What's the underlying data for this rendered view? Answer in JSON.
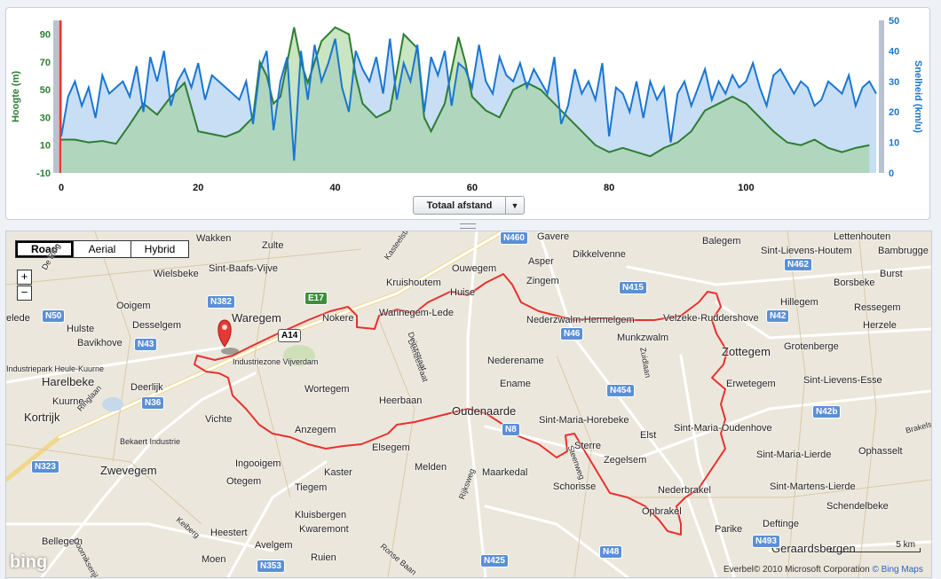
{
  "chart_data": {
    "type": "area",
    "xlabel": "",
    "x_ticks": [
      0,
      20,
      40,
      60,
      80,
      100
    ],
    "xlim": [
      0,
      119
    ],
    "y_left": {
      "label": "Hoogte (m)",
      "ticks": [
        -10,
        10,
        30,
        50,
        70,
        90
      ],
      "range": [
        -10,
        100
      ],
      "color": "#2e7d32"
    },
    "y_right": {
      "label": "Snelheid (km/u)",
      "ticks": [
        0,
        10,
        20,
        30,
        40,
        50
      ],
      "range": [
        0,
        50
      ],
      "color": "#1976d2"
    },
    "series": [
      {
        "name": "Hoogte",
        "unit": "m",
        "color": "#2e7d32",
        "x": [
          0,
          2,
          4,
          6,
          8,
          10,
          12,
          14,
          16,
          18,
          20,
          22,
          24,
          26,
          28,
          29,
          30,
          31,
          32,
          34,
          35,
          36,
          38,
          40,
          42,
          43,
          44,
          46,
          48,
          50,
          52,
          53,
          54,
          56,
          58,
          59,
          60,
          62,
          64,
          66,
          68,
          70,
          72,
          74,
          76,
          78,
          80,
          82,
          84,
          86,
          88,
          90,
          92,
          94,
          96,
          98,
          100,
          102,
          104,
          106,
          108,
          110,
          112,
          114,
          116,
          118
        ],
        "values": [
          14,
          14,
          12,
          13,
          11,
          25,
          40,
          32,
          45,
          55,
          20,
          18,
          16,
          20,
          30,
          70,
          60,
          40,
          45,
          95,
          70,
          55,
          85,
          95,
          90,
          60,
          40,
          30,
          35,
          90,
          80,
          30,
          20,
          40,
          88,
          70,
          45,
          35,
          30,
          50,
          55,
          50,
          40,
          30,
          20,
          10,
          5,
          8,
          5,
          2,
          8,
          12,
          20,
          35,
          40,
          45,
          40,
          30,
          20,
          12,
          10,
          14,
          8,
          5,
          8,
          10
        ]
      },
      {
        "name": "Snelheid",
        "unit": "km/u",
        "color": "#1976d2",
        "x": [
          0,
          1,
          2,
          3,
          4,
          5,
          6,
          7,
          8,
          9,
          10,
          11,
          12,
          13,
          14,
          15,
          16,
          17,
          18,
          19,
          20,
          21,
          22,
          23,
          24,
          25,
          26,
          27,
          28,
          29,
          30,
          31,
          32,
          33,
          34,
          35,
          36,
          37,
          38,
          39,
          40,
          41,
          42,
          43,
          44,
          45,
          46,
          47,
          48,
          49,
          50,
          51,
          52,
          53,
          54,
          55,
          56,
          57,
          58,
          59,
          60,
          61,
          62,
          63,
          64,
          65,
          66,
          67,
          68,
          69,
          70,
          71,
          72,
          73,
          74,
          75,
          76,
          77,
          78,
          79,
          80,
          81,
          82,
          83,
          84,
          85,
          86,
          87,
          88,
          89,
          90,
          91,
          92,
          93,
          94,
          95,
          96,
          97,
          98,
          99,
          100,
          101,
          102,
          103,
          104,
          105,
          106,
          107,
          108,
          109,
          110,
          111,
          112,
          113,
          114,
          115,
          116,
          117,
          118,
          119
        ],
        "values": [
          12,
          25,
          30,
          22,
          28,
          18,
          32,
          26,
          28,
          30,
          25,
          35,
          20,
          38,
          30,
          40,
          22,
          30,
          34,
          28,
          36,
          24,
          32,
          30,
          28,
          26,
          24,
          30,
          16,
          34,
          40,
          14,
          30,
          38,
          4,
          40,
          24,
          42,
          30,
          36,
          44,
          28,
          20,
          40,
          34,
          30,
          38,
          26,
          44,
          24,
          36,
          30,
          42,
          20,
          38,
          32,
          40,
          22,
          36,
          34,
          28,
          42,
          30,
          26,
          38,
          32,
          30,
          36,
          28,
          34,
          30,
          26,
          38,
          16,
          22,
          34,
          26,
          30,
          24,
          36,
          12,
          28,
          26,
          20,
          30,
          18,
          30,
          24,
          28,
          10,
          26,
          30,
          22,
          28,
          34,
          24,
          30,
          26,
          32,
          28,
          30,
          36,
          28,
          22,
          32,
          34,
          30,
          26,
          30,
          28,
          22,
          24,
          30,
          28,
          26,
          32,
          22,
          28,
          30,
          26
        ]
      }
    ],
    "grid": false,
    "selector": {
      "label": "Totaal afstand"
    }
  },
  "map": {
    "types": [
      "Road",
      "Aerial",
      "Hybrid"
    ],
    "active_type": "Road",
    "zoom_in": "+",
    "zoom_out": "−",
    "scale_label": "5 km",
    "copyright": "Everbel© 2010 Microsoft Corporation",
    "copyright_link": "© Bing Maps",
    "logo": "bing",
    "towns": [
      {
        "label": "Wakken"
      },
      {
        "label": "Zulte"
      },
      {
        "label": "Sint-Baafs-Vijve"
      },
      {
        "label": "Wielsbeke"
      },
      {
        "label": "Ooigem"
      },
      {
        "label": "Desselgem"
      },
      {
        "label": "Waregem",
        "big": true
      },
      {
        "label": "Nokere"
      },
      {
        "label": "Wannegem-Lede"
      },
      {
        "label": "Kruishoutem"
      },
      {
        "label": "Huise"
      },
      {
        "label": "Ouwegem"
      },
      {
        "label": "Gavere"
      },
      {
        "label": "Asper"
      },
      {
        "label": "Dikkelvenne"
      },
      {
        "label": "Zingem"
      },
      {
        "label": "Balegem"
      },
      {
        "label": "Sint-Lievens-Houtem"
      },
      {
        "label": "Bambrugge"
      },
      {
        "label": "Lettenhouten"
      },
      {
        "label": "Burst"
      },
      {
        "label": "Borsbeke"
      },
      {
        "label": "Hillegem"
      },
      {
        "label": "Ressegem"
      },
      {
        "label": "Herzele"
      },
      {
        "label": "Velzeke-Ruddershove"
      },
      {
        "label": "Nederzwalm-Hermelgem"
      },
      {
        "label": "Munkzwalm"
      },
      {
        "label": "Zottegem",
        "big": true
      },
      {
        "label": "Grotenberge"
      },
      {
        "label": "Erwetegem"
      },
      {
        "label": "Sint-Lievens-Esse"
      },
      {
        "label": "Hulste"
      },
      {
        "label": "Bavikhove"
      },
      {
        "label": "Harelbeke",
        "big": true
      },
      {
        "label": "Deerlijk"
      },
      {
        "label": "Kuurne"
      },
      {
        "label": "Kortrijk",
        "big": true
      },
      {
        "label": "Vichte"
      },
      {
        "label": "Wortegem"
      },
      {
        "label": "Anzegem"
      },
      {
        "label": "Heerbaan"
      },
      {
        "label": "Elsegem"
      },
      {
        "label": "Nederename"
      },
      {
        "label": "Ename"
      },
      {
        "label": "Oudenaarde",
        "big": true
      },
      {
        "label": "Sint-Maria-Horebeke"
      },
      {
        "label": "Elst"
      },
      {
        "label": "Sint-Maria-Oudenhove"
      },
      {
        "label": "Zwevegem",
        "big": true
      },
      {
        "label": "Ingooigem"
      },
      {
        "label": "Otegem"
      },
      {
        "label": "Kaster"
      },
      {
        "label": "Tiegem"
      },
      {
        "label": "Melden"
      },
      {
        "label": "Maarkedal"
      },
      {
        "label": "Zegelsem"
      },
      {
        "label": "Schorisse"
      },
      {
        "label": "Nederbrakel"
      },
      {
        "label": "Opbrakel"
      },
      {
        "label": "Sint-Maria-Lierde"
      },
      {
        "label": "Ophasselt"
      },
      {
        "label": "Sint-Martens-Lierde"
      },
      {
        "label": "Schendelbeke"
      },
      {
        "label": "Kluisbergen"
      },
      {
        "label": "Kwaremont"
      },
      {
        "label": "Heestert"
      },
      {
        "label": "Avelgem"
      },
      {
        "label": "Bellegem"
      },
      {
        "label": "Moen"
      },
      {
        "label": "Ruien"
      },
      {
        "label": "Parike"
      },
      {
        "label": "Deftinge"
      },
      {
        "label": "Geraardsbergen",
        "big": true
      },
      {
        "label": "Industriezone Vijverdam"
      },
      {
        "label": "Bekaert Industrie"
      },
      {
        "label": "Ringlaan"
      },
      {
        "label": "Kasteelstraat"
      },
      {
        "label": "Deinzestraat"
      },
      {
        "label": "Zuidlaan"
      },
      {
        "label": "Steenweg"
      },
      {
        "label": "Rijksweg"
      },
      {
        "label": "Ronse Baan"
      },
      {
        "label": "Keiberg"
      },
      {
        "label": "Doornikserijksweg"
      },
      {
        "label": "Industriepark Heule-Kuurne"
      },
      {
        "label": "elede"
      },
      {
        "label": "Sterre"
      },
      {
        "label": "Deinzstraat"
      },
      {
        "label": "Brakels"
      },
      {
        "label": "De Ring"
      }
    ],
    "roads": [
      "E17",
      "A14",
      "N382",
      "N50",
      "N43",
      "N36",
      "N323",
      "N415",
      "N46",
      "N454",
      "N8",
      "N42",
      "N462",
      "N42b",
      "N425",
      "N48",
      "N353",
      "N493",
      "N460"
    ]
  }
}
